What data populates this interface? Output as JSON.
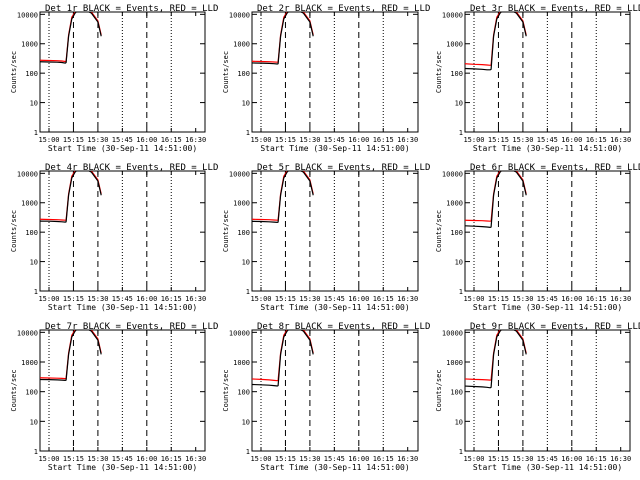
{
  "colors": {
    "events": "#000000",
    "lld": "#ff0000",
    "background": "#ffffff"
  },
  "chart_data": {
    "type": "line",
    "y_scale": "log",
    "ylim": [
      1,
      12000
    ],
    "y_ticks": [
      1,
      10,
      100,
      1000,
      10000
    ],
    "y_tick_labels": [
      "1",
      "10",
      "100",
      "1000",
      "10000"
    ],
    "ylabel": "Counts/sec",
    "x_range_minutes": [
      -5,
      32
    ],
    "x_ticks": [
      0,
      15,
      30,
      45,
      60,
      75,
      90
    ],
    "x_tick_labels": [
      "15:00",
      "15:15",
      "15:30",
      "15:45",
      "16:00",
      "16:15",
      "16:30"
    ],
    "xlabel": "Start Time (30-Sep-11 14:51:00)",
    "grid": false,
    "panels": [
      {
        "title": "Det 1r BLACK = Events, RED = LLD",
        "series": [
          {
            "color": "#ff0000",
            "x": [
              -12,
              0,
              5,
              8,
              10,
              10.5,
              12,
              14,
              16,
              18,
              22,
              26,
              30,
              32
            ],
            "y": [
              280,
              270,
              265,
              260,
              250,
              260,
              2000,
              8000,
              12000,
              15000,
              15000,
              12000,
              6000,
              2000
            ]
          },
          {
            "color": "#000000",
            "x": [
              -12,
              0,
              5,
              8,
              10,
              10.5,
              12,
              14,
              16,
              18,
              22,
              26,
              30,
              32
            ],
            "y": [
              250,
              240,
              235,
              230,
              220,
              230,
              1800,
              7000,
              11000,
              14000,
              14000,
              11000,
              5500,
              1800
            ]
          }
        ]
      },
      {
        "title": "Det 2r BLACK = Events, RED = LLD",
        "series": [
          {
            "color": "#ff0000",
            "x": [
              -12,
              0,
              5,
              8,
              10,
              10.5,
              12,
              14,
              16,
              18,
              22,
              26,
              30,
              32
            ],
            "y": [
              260,
              250,
              245,
              240,
              235,
              240,
              2000,
              8000,
              12000,
              15000,
              15000,
              12000,
              6000,
              2000
            ]
          },
          {
            "color": "#000000",
            "x": [
              -12,
              0,
              5,
              8,
              10,
              10.5,
              12,
              14,
              16,
              18,
              22,
              26,
              30,
              32
            ],
            "y": [
              225,
              220,
              215,
              210,
              205,
              210,
              1800,
              7000,
              11000,
              14000,
              14000,
              11000,
              5500,
              1800
            ]
          }
        ]
      },
      {
        "title": "Det 3r BLACK = Events, RED = LLD",
        "series": [
          {
            "color": "#ff0000",
            "x": [
              -12,
              0,
              5,
              8,
              10,
              10.5,
              12,
              14,
              16,
              18,
              22,
              26,
              30,
              32
            ],
            "y": [
              220,
              200,
              195,
              190,
              185,
              190,
              2000,
              8000,
              12000,
              15000,
              15000,
              12000,
              6000,
              2000
            ]
          },
          {
            "color": "#000000",
            "x": [
              -12,
              0,
              5,
              8,
              10,
              10.5,
              12,
              14,
              16,
              18,
              22,
              26,
              30,
              32
            ],
            "y": [
              150,
              140,
              135,
              130,
              130,
              135,
              1800,
              7000,
              11000,
              14000,
              14000,
              11000,
              5500,
              1800
            ]
          }
        ]
      },
      {
        "title": "Det 4r BLACK = Events, RED = LLD",
        "series": [
          {
            "color": "#ff0000",
            "x": [
              -12,
              0,
              5,
              8,
              10,
              10.5,
              12,
              14,
              16,
              18,
              22,
              26,
              30,
              32
            ],
            "y": [
              280,
              270,
              265,
              260,
              255,
              260,
              2000,
              8000,
              12000,
              15000,
              15000,
              12000,
              6000,
              2000
            ]
          },
          {
            "color": "#000000",
            "x": [
              -12,
              0,
              5,
              8,
              10,
              10.5,
              12,
              14,
              16,
              18,
              22,
              26,
              30,
              32
            ],
            "y": [
              240,
              235,
              230,
              225,
              220,
              225,
              1800,
              7000,
              11000,
              14000,
              14000,
              11000,
              5500,
              1800
            ]
          }
        ]
      },
      {
        "title": "Det 5r BLACK = Events, RED = LLD",
        "series": [
          {
            "color": "#ff0000",
            "x": [
              -12,
              0,
              5,
              8,
              10,
              10.5,
              12,
              14,
              16,
              18,
              22,
              26,
              30,
              32
            ],
            "y": [
              280,
              270,
              265,
              260,
              255,
              260,
              2000,
              8000,
              12000,
              15000,
              15000,
              12000,
              6000,
              2000
            ]
          },
          {
            "color": "#000000",
            "x": [
              -12,
              0,
              5,
              8,
              10,
              10.5,
              12,
              14,
              16,
              18,
              22,
              26,
              30,
              32
            ],
            "y": [
              235,
              230,
              225,
              220,
              215,
              220,
              1800,
              7000,
              11000,
              14000,
              14000,
              11000,
              5500,
              1800
            ]
          }
        ]
      },
      {
        "title": "Det 6r BLACK = Events, RED = LLD",
        "series": [
          {
            "color": "#ff0000",
            "x": [
              -12,
              0,
              5,
              8,
              10,
              10.5,
              12,
              14,
              16,
              18,
              22,
              26,
              30,
              32
            ],
            "y": [
              260,
              250,
              245,
              240,
              235,
              240,
              2000,
              8000,
              12000,
              15000,
              15000,
              12000,
              6000,
              2000
            ]
          },
          {
            "color": "#000000",
            "x": [
              -12,
              0,
              5,
              8,
              10,
              10.5,
              12,
              14,
              16,
              18,
              22,
              26,
              30,
              32
            ],
            "y": [
              170,
              160,
              155,
              150,
              145,
              150,
              1800,
              7000,
              11000,
              14000,
              14000,
              11000,
              5500,
              1800
            ]
          }
        ]
      },
      {
        "title": "Det 7r BLACK = Events, RED = LLD",
        "series": [
          {
            "color": "#ff0000",
            "x": [
              -12,
              0,
              5,
              8,
              10,
              10.5,
              12,
              14,
              16,
              18,
              22,
              26,
              30,
              32
            ],
            "y": [
              300,
              290,
              285,
              280,
              275,
              280,
              2000,
              8000,
              12000,
              15000,
              15000,
              12000,
              6000,
              2000
            ]
          },
          {
            "color": "#000000",
            "x": [
              -12,
              0,
              5,
              8,
              10,
              10.5,
              12,
              14,
              16,
              18,
              22,
              26,
              30,
              32
            ],
            "y": [
              260,
              255,
              250,
              245,
              240,
              245,
              1800,
              7000,
              11000,
              14000,
              14000,
              11000,
              5500,
              1800
            ]
          }
        ]
      },
      {
        "title": "Det 8r BLACK = Events, RED = LLD",
        "series": [
          {
            "color": "#ff0000",
            "x": [
              -12,
              0,
              5,
              8,
              10,
              10.5,
              12,
              14,
              16,
              18,
              22,
              26,
              30,
              32
            ],
            "y": [
              280,
              260,
              250,
              240,
              235,
              240,
              2000,
              8000,
              12000,
              15000,
              15000,
              12000,
              6000,
              2000
            ]
          },
          {
            "color": "#000000",
            "x": [
              -12,
              0,
              5,
              8,
              10,
              10.5,
              12,
              14,
              16,
              18,
              22,
              26,
              30,
              32
            ],
            "y": [
              180,
              170,
              165,
              160,
              155,
              160,
              1800,
              7000,
              11000,
              14000,
              14000,
              11000,
              5500,
              1800
            ]
          }
        ]
      },
      {
        "title": "Det 9r BLACK = Events, RED = LLD",
        "series": [
          {
            "color": "#ff0000",
            "x": [
              -12,
              0,
              5,
              8,
              10,
              10.5,
              12,
              14,
              16,
              18,
              22,
              26,
              30,
              32
            ],
            "y": [
              280,
              260,
              255,
              250,
              245,
              250,
              2000,
              8000,
              12000,
              15000,
              15000,
              12000,
              6000,
              2000
            ]
          },
          {
            "color": "#000000",
            "x": [
              -12,
              0,
              5,
              8,
              10,
              10.5,
              12,
              14,
              16,
              18,
              22,
              26,
              30,
              32
            ],
            "y": [
              160,
              150,
              145,
              140,
              135,
              140,
              1800,
              7000,
              11000,
              14000,
              14000,
              11000,
              5500,
              1800
            ]
          }
        ]
      }
    ]
  }
}
